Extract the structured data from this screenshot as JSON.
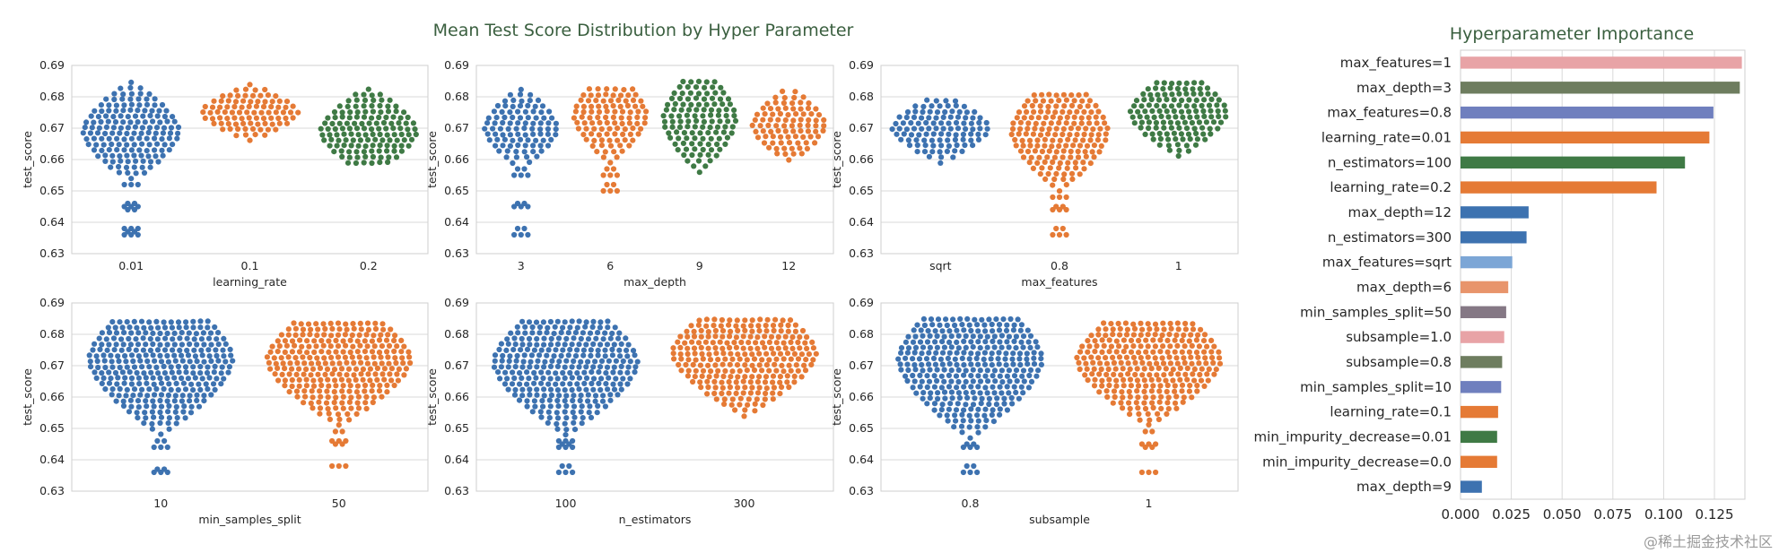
{
  "chart_data": {
    "title": "Mean Test Score Distribution by Hyper Parameter",
    "panels": [
      {
        "type": "swarm",
        "xlabel": "learning_rate",
        "ylabel": "test_score",
        "ylim": [
          0.63,
          0.69
        ],
        "yticks": [
          "0.63",
          "0.64",
          "0.65",
          "0.66",
          "0.67",
          "0.68",
          "0.69"
        ],
        "categories": [
          "0.01",
          "0.1",
          "0.2"
        ],
        "colors": [
          "#3d72b0",
          "#e57a35",
          "#3f7a45"
        ],
        "distributions": [
          {
            "min": 0.636,
            "max": 0.685,
            "center": 0.669,
            "n": 150,
            "outliers": [
              0.636,
              0.637,
              0.638,
              0.644,
              0.645,
              0.646,
              0.652
            ]
          },
          {
            "min": 0.666,
            "max": 0.684,
            "center": 0.675,
            "n": 110,
            "outliers": []
          },
          {
            "min": 0.659,
            "max": 0.683,
            "center": 0.669,
            "n": 120,
            "outliers": []
          }
        ]
      },
      {
        "type": "swarm",
        "xlabel": "max_depth",
        "ylabel": "test_score",
        "ylim": [
          0.63,
          0.69
        ],
        "yticks": [
          "0.63",
          "0.64",
          "0.65",
          "0.66",
          "0.67",
          "0.68",
          "0.69"
        ],
        "categories": [
          "3",
          "6",
          "9",
          "12"
        ],
        "colors": [
          "#3d72b0",
          "#e57a35",
          "#3f7a45",
          "#e57a35"
        ],
        "distributions": [
          {
            "min": 0.636,
            "max": 0.683,
            "center": 0.67,
            "n": 95,
            "outliers": [
              0.636,
              0.638,
              0.645,
              0.646,
              0.655,
              0.657
            ]
          },
          {
            "min": 0.65,
            "max": 0.684,
            "center": 0.674,
            "n": 100,
            "outliers": [
              0.65,
              0.652,
              0.655,
              0.657
            ]
          },
          {
            "min": 0.656,
            "max": 0.685,
            "center": 0.673,
            "n": 100,
            "outliers": []
          },
          {
            "min": 0.66,
            "max": 0.683,
            "center": 0.671,
            "n": 95,
            "outliers": []
          }
        ]
      },
      {
        "type": "swarm",
        "xlabel": "max_features",
        "ylabel": "test_score",
        "ylim": [
          0.63,
          0.69
        ],
        "yticks": [
          "0.63",
          "0.64",
          "0.65",
          "0.66",
          "0.67",
          "0.68",
          "0.69"
        ],
        "categories": [
          "sqrt",
          "0.8",
          "1"
        ],
        "colors": [
          "#3d72b0",
          "#e57a35",
          "#3f7a45"
        ],
        "distributions": [
          {
            "min": 0.659,
            "max": 0.68,
            "center": 0.67,
            "n": 110,
            "outliers": []
          },
          {
            "min": 0.636,
            "max": 0.681,
            "center": 0.669,
            "n": 130,
            "outliers": [
              0.636,
              0.638,
              0.644,
              0.645,
              0.648
            ]
          },
          {
            "min": 0.661,
            "max": 0.685,
            "center": 0.675,
            "n": 140,
            "outliers": []
          }
        ]
      },
      {
        "type": "swarm",
        "xlabel": "min_samples_split",
        "ylabel": "test_score",
        "ylim": [
          0.63,
          0.69
        ],
        "yticks": [
          "0.63",
          "0.64",
          "0.65",
          "0.66",
          "0.67",
          "0.68",
          "0.69"
        ],
        "categories": [
          "10",
          "50"
        ],
        "colors": [
          "#3d72b0",
          "#e57a35"
        ],
        "distributions": [
          {
            "min": 0.636,
            "max": 0.685,
            "center": 0.672,
            "n": 190,
            "outliers": [
              0.636,
              0.637,
              0.644,
              0.646
            ]
          },
          {
            "min": 0.638,
            "max": 0.685,
            "center": 0.672,
            "n": 190,
            "outliers": [
              0.638,
              0.645,
              0.646,
              0.649
            ]
          }
        ]
      },
      {
        "type": "swarm",
        "xlabel": "n_estimators",
        "ylabel": "test_score",
        "ylim": [
          0.63,
          0.69
        ],
        "yticks": [
          "0.63",
          "0.64",
          "0.65",
          "0.66",
          "0.67",
          "0.68",
          "0.69"
        ],
        "categories": [
          "100",
          "300"
        ],
        "colors": [
          "#3d72b0",
          "#e57a35"
        ],
        "distributions": [
          {
            "min": 0.636,
            "max": 0.684,
            "center": 0.671,
            "n": 190,
            "outliers": [
              0.636,
              0.638,
              0.644,
              0.645,
              0.646
            ]
          },
          {
            "min": 0.654,
            "max": 0.685,
            "center": 0.674,
            "n": 190,
            "outliers": []
          }
        ]
      },
      {
        "type": "swarm",
        "xlabel": "subsample",
        "ylabel": "test_score",
        "ylim": [
          0.63,
          0.69
        ],
        "yticks": [
          "0.63",
          "0.64",
          "0.65",
          "0.66",
          "0.67",
          "0.68",
          "0.69"
        ],
        "categories": [
          "0.8",
          "1"
        ],
        "colors": [
          "#3d72b0",
          "#e57a35"
        ],
        "distributions": [
          {
            "min": 0.636,
            "max": 0.685,
            "center": 0.672,
            "n": 190,
            "outliers": [
              0.636,
              0.638,
              0.644,
              0.645
            ]
          },
          {
            "min": 0.636,
            "max": 0.685,
            "center": 0.672,
            "n": 190,
            "outliers": [
              0.636,
              0.644,
              0.645,
              0.649
            ]
          }
        ]
      }
    ],
    "importance": {
      "type": "bar",
      "orientation": "horizontal",
      "title": "Hyperparameter Importance",
      "xlim": [
        0,
        0.14
      ],
      "xticks": [
        "0.000",
        "0.025",
        "0.050",
        "0.075",
        "0.100",
        "0.125"
      ],
      "labels": [
        "max_features=1",
        "max_depth=3",
        "max_features=0.8",
        "learning_rate=0.01",
        "n_estimators=100",
        "learning_rate=0.2",
        "max_depth=12",
        "n_estimators=300",
        "max_features=sqrt",
        "max_depth=6",
        "min_samples_split=50",
        "subsample=1.0",
        "subsample=0.8",
        "min_samples_split=10",
        "learning_rate=0.1",
        "min_impurity_decrease=0.01",
        "min_impurity_decrease=0.0",
        "max_depth=9"
      ],
      "values": [
        0.1385,
        0.1375,
        0.1245,
        0.1225,
        0.1105,
        0.0965,
        0.0335,
        0.0325,
        0.0255,
        0.0235,
        0.0225,
        0.0215,
        0.0205,
        0.02,
        0.0185,
        0.018,
        0.018,
        0.0105
      ],
      "colors": [
        "#e8a3a6",
        "#6e7d5f",
        "#6f7fbe",
        "#e57a35",
        "#3f7a45",
        "#e57a35",
        "#3d72b0",
        "#3d72b0",
        "#7ca6d6",
        "#e8946b",
        "#857885",
        "#e8a3a6",
        "#6e7d5f",
        "#6f7fbe",
        "#e57a35",
        "#3f7a45",
        "#e57a35",
        "#3d72b0"
      ]
    }
  },
  "watermark": "@稀土掘金技术社区"
}
